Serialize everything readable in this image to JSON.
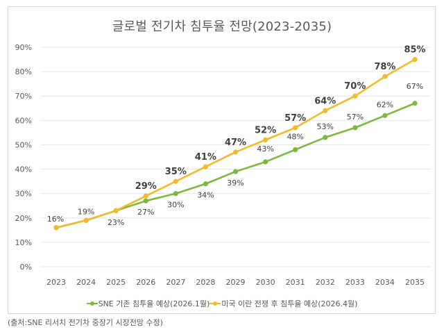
{
  "chart_data": {
    "type": "line",
    "title": "글로벌 전기차 침투율 전망(2023-2035)",
    "xlabel": "",
    "ylabel": "",
    "x": [
      "2023",
      "2024",
      "2025",
      "2026",
      "2027",
      "2028",
      "2029",
      "2030",
      "2031",
      "2032",
      "2033",
      "2034",
      "2035"
    ],
    "ylim": [
      0,
      90
    ],
    "yticks": [
      0,
      10,
      20,
      30,
      40,
      50,
      60,
      70,
      80,
      90
    ],
    "ytick_labels": [
      "0%",
      "10%",
      "20%",
      "30%",
      "40%",
      "50%",
      "60%",
      "70%",
      "80%",
      "90%"
    ],
    "grid": true,
    "legend_position": "bottom",
    "series": [
      {
        "name": "SNE 기존 침투율 예상(2026.1월)",
        "color": "#7cb93a",
        "values": [
          16,
          19,
          23,
          27,
          30,
          34,
          39,
          43,
          48,
          53,
          57,
          62,
          67
        ],
        "labels": [
          "16%",
          "19%",
          "23%",
          "27%",
          "30%",
          "34%",
          "39%",
          "43%",
          "48%",
          "53%",
          "57%",
          "62%",
          "67%"
        ],
        "labeled_from_index": 3
      },
      {
        "name": "미국 이란 전쟁 후 침투율 예상(2026.4월)",
        "color": "#f5b92b",
        "values": [
          16,
          19,
          23,
          29,
          35,
          41,
          47,
          52,
          57,
          64,
          70,
          78,
          85
        ],
        "labels": [
          "16%",
          "19%",
          "23%",
          "29%",
          "35%",
          "41%",
          "47%",
          "52%",
          "57%",
          "64%",
          "70%",
          "78%",
          "85%"
        ],
        "labeled_from_index": 0
      }
    ]
  },
  "footnote": "(출처:SNE 리서치 전기차 중장기 시장전망 수정)"
}
